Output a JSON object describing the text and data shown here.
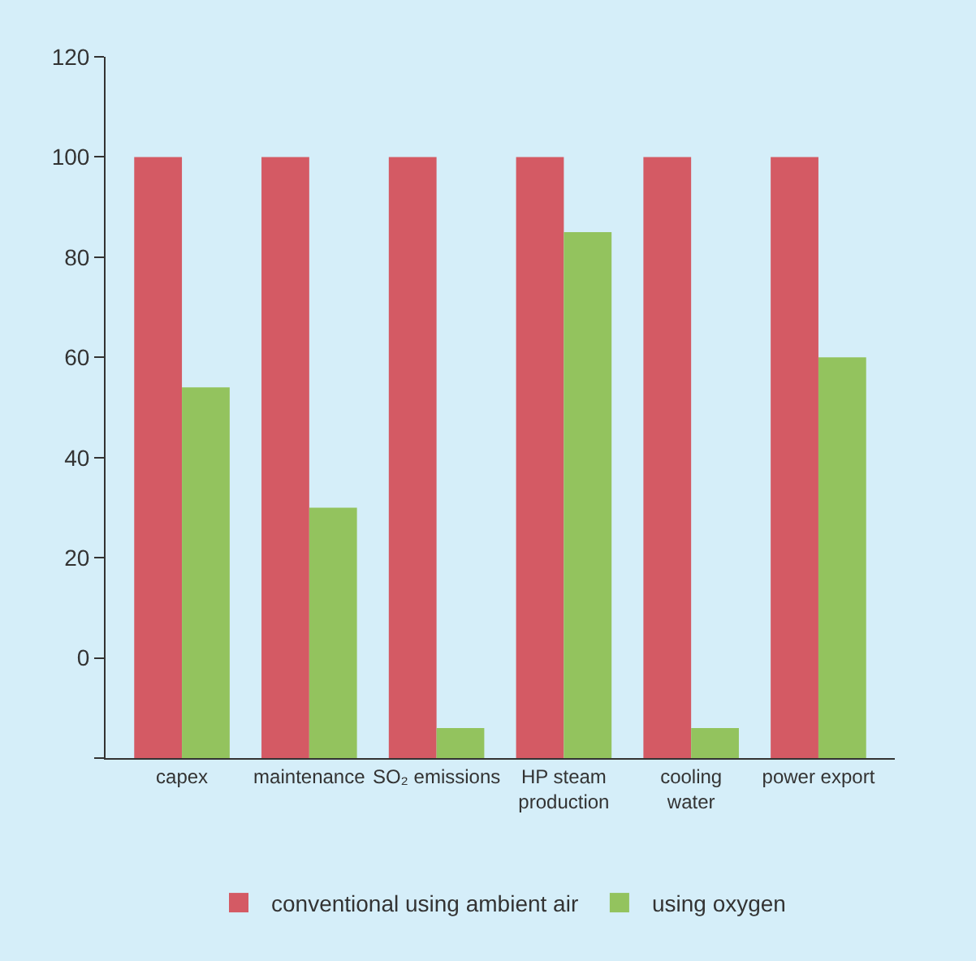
{
  "chart_data": {
    "type": "bar",
    "categories": [
      "capex",
      "maintenance",
      "SO₂ emissions",
      "HP steam\nproduction",
      "cooling\nwater",
      "power export"
    ],
    "series": [
      {
        "name": "conventional using ambient air",
        "color": "#d45a64",
        "values": [
          120,
          120,
          120,
          120,
          120,
          120
        ],
        "base": [
          -20,
          -20,
          -20,
          -20,
          -20,
          -20
        ]
      },
      {
        "name": "using oxygen",
        "color": "#93c35e",
        "values": [
          74,
          50,
          6,
          105,
          6,
          80
        ],
        "base": [
          -20,
          -20,
          -20,
          -20,
          -20,
          -20
        ]
      }
    ],
    "ylim": [
      -20,
      120
    ],
    "yticks": [
      {
        "value": -20,
        "label": null
      },
      0,
      20,
      40,
      60,
      80,
      100,
      120
    ],
    "grid": false,
    "legend": "bottom"
  }
}
